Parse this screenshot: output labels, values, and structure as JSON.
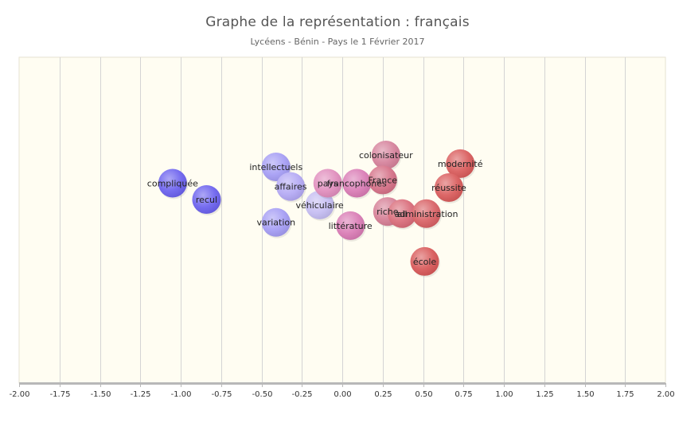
{
  "header": {
    "title": "Graphe de la représentation : français",
    "subtitle": "Lycéens - Bénin - Pays le 1 Février 2017"
  },
  "colors": {
    "plot_background": "#fffdf2",
    "grid": "#d4d4d4",
    "axis": "#b8b8b8"
  },
  "chart_data": {
    "type": "scatter",
    "title": "Graphe de la représentation : français",
    "subtitle": "Lycéens - Bénin - Pays le 1 Février 2017",
    "xlabel": "",
    "ylabel": "",
    "xlim": [
      -2.0,
      2.0
    ],
    "ylim": [
      -1.5,
      1.5
    ],
    "x_ticks": [
      "-2.00",
      "-1.75",
      "-1.50",
      "-1.25",
      "-1.00",
      "-0.75",
      "-0.50",
      "-0.25",
      "0.00",
      "0.25",
      "0.50",
      "0.75",
      "1.00",
      "1.25",
      "1.50",
      "1.75",
      "2.00"
    ],
    "grid": true,
    "legend": "none",
    "points": [
      {
        "label": "compliquée",
        "x": -1.05,
        "y": 0.34,
        "color": "#6a60ee"
      },
      {
        "label": "recul",
        "x": -0.84,
        "y": 0.19,
        "color": "#6a60ee"
      },
      {
        "label": "intellectuels",
        "x": -0.41,
        "y": 0.49,
        "color": "#a49cf4"
      },
      {
        "label": "affaires",
        "x": -0.32,
        "y": 0.31,
        "color": "#b3a8f4"
      },
      {
        "label": "variation",
        "x": -0.41,
        "y": -0.02,
        "color": "#a49cf4"
      },
      {
        "label": "véhiculaire",
        "x": -0.14,
        "y": 0.14,
        "color": "#c4bcf2"
      },
      {
        "label": "pays",
        "x": -0.09,
        "y": 0.34,
        "color": "#e08cbc"
      },
      {
        "label": "francophones",
        "x": 0.09,
        "y": 0.34,
        "color": "#d97ab4"
      },
      {
        "label": "littérature",
        "x": 0.05,
        "y": -0.05,
        "color": "#d97ab4"
      },
      {
        "label": "colonisateur",
        "x": 0.27,
        "y": 0.6,
        "color": "#d5809a"
      },
      {
        "label": "France",
        "x": 0.25,
        "y": 0.37,
        "color": "#d56f86"
      },
      {
        "label": "riche",
        "x": 0.28,
        "y": 0.08,
        "color": "#d57d94"
      },
      {
        "label": "ail",
        "x": 0.37,
        "y": 0.06,
        "color": "#d96a78"
      },
      {
        "label": "administration",
        "x": 0.52,
        "y": 0.06,
        "color": "#d85f63"
      },
      {
        "label": "école",
        "x": 0.51,
        "y": -0.38,
        "color": "#d85757"
      },
      {
        "label": "modernité",
        "x": 0.73,
        "y": 0.52,
        "color": "#d95a5a"
      },
      {
        "label": "réussite",
        "x": 0.66,
        "y": 0.3,
        "color": "#d95a5a"
      }
    ]
  }
}
